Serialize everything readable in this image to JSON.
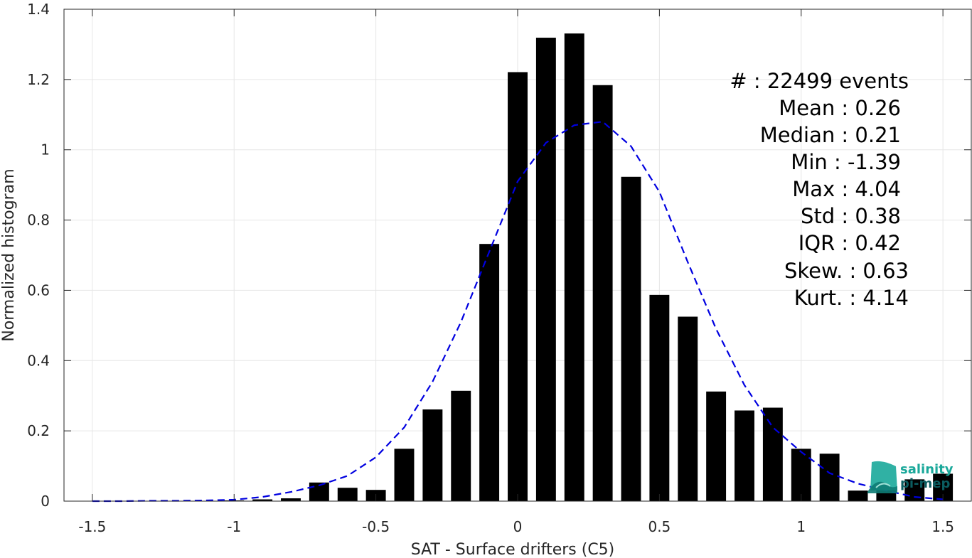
{
  "chart_data": {
    "type": "bar",
    "title": "",
    "xlabel": "SAT - Surface drifters (C5)",
    "ylabel": "Normalized histogram",
    "xlim": [
      -1.6,
      1.6
    ],
    "ylim": [
      0,
      1.4
    ],
    "xticks": [
      -1.5,
      -1,
      -0.5,
      0,
      0.5,
      1,
      1.5
    ],
    "xtick_labels": [
      "-1.5",
      "-1",
      "-0.5",
      "0",
      "0.5",
      "1",
      "1.5"
    ],
    "yticks": [
      0,
      0.2,
      0.4,
      0.6,
      0.8,
      1,
      1.2,
      1.4
    ],
    "ytick_labels": [
      "0",
      "0.2",
      "0.4",
      "0.6",
      "0.8",
      "1",
      "1.2",
      "1.4"
    ],
    "grid": true,
    "bin_width": 0.1,
    "bars": [
      {
        "x": -1.5,
        "value": 0.0
      },
      {
        "x": -1.4,
        "value": 0.0
      },
      {
        "x": -1.3,
        "value": 0.0
      },
      {
        "x": -1.2,
        "value": 0.0
      },
      {
        "x": -1.1,
        "value": 0.001
      },
      {
        "x": -1.0,
        "value": 0.002
      },
      {
        "x": -0.9,
        "value": 0.005
      },
      {
        "x": -0.8,
        "value": 0.008
      },
      {
        "x": -0.7,
        "value": 0.053
      },
      {
        "x": -0.6,
        "value": 0.038
      },
      {
        "x": -0.5,
        "value": 0.032
      },
      {
        "x": -0.4,
        "value": 0.149
      },
      {
        "x": -0.3,
        "value": 0.261
      },
      {
        "x": -0.2,
        "value": 0.314
      },
      {
        "x": -0.1,
        "value": 0.732
      },
      {
        "x": 0.0,
        "value": 1.221
      },
      {
        "x": 0.1,
        "value": 1.319
      },
      {
        "x": 0.2,
        "value": 1.331
      },
      {
        "x": 0.3,
        "value": 1.184
      },
      {
        "x": 0.4,
        "value": 0.923
      },
      {
        "x": 0.5,
        "value": 0.587
      },
      {
        "x": 0.6,
        "value": 0.525
      },
      {
        "x": 0.7,
        "value": 0.312
      },
      {
        "x": 0.8,
        "value": 0.258
      },
      {
        "x": 0.9,
        "value": 0.266
      },
      {
        "x": 1.0,
        "value": 0.149
      },
      {
        "x": 1.1,
        "value": 0.135
      },
      {
        "x": 1.2,
        "value": 0.03
      },
      {
        "x": 1.3,
        "value": 0.032
      },
      {
        "x": 1.4,
        "value": 0.062
      },
      {
        "x": 1.5,
        "value": 0.078
      }
    ],
    "fit_curve": {
      "style": "dashed",
      "color": "#0000e0",
      "x": [
        -1.5,
        -1.4,
        -1.3,
        -1.2,
        -1.1,
        -1.0,
        -0.9,
        -0.8,
        -0.7,
        -0.6,
        -0.5,
        -0.4,
        -0.3,
        -0.2,
        -0.1,
        0.0,
        0.1,
        0.2,
        0.3,
        0.4,
        0.5,
        0.6,
        0.7,
        0.8,
        0.9,
        1.0,
        1.1,
        1.2,
        1.3,
        1.4,
        1.5
      ],
      "y": [
        0.0,
        0.0,
        0.001,
        0.001,
        0.002,
        0.004,
        0.012,
        0.026,
        0.045,
        0.072,
        0.125,
        0.21,
        0.34,
        0.51,
        0.71,
        0.91,
        1.02,
        1.07,
        1.08,
        1.01,
        0.88,
        0.68,
        0.49,
        0.33,
        0.21,
        0.14,
        0.08,
        0.05,
        0.03,
        0.012,
        0.005
      ]
    },
    "colors": {
      "bars": "#000000",
      "curve": "#0000e0",
      "grid": "#e6e6e6",
      "axis": "#262626"
    }
  },
  "stats": {
    "lines": [
      "#  : 22499 events",
      "Mean : 0.26",
      "Median : 0.21",
      "Min : -1.39",
      "Max : 4.04",
      "Std : 0.38",
      "IQR : 0.42",
      "Skew. : 0.63",
      "Kurt. : 4.14"
    ]
  },
  "logo": {
    "line1": "salinity",
    "line2": "pi-mep",
    "color1": "#1aa89a",
    "color2": "#0b5c60"
  }
}
